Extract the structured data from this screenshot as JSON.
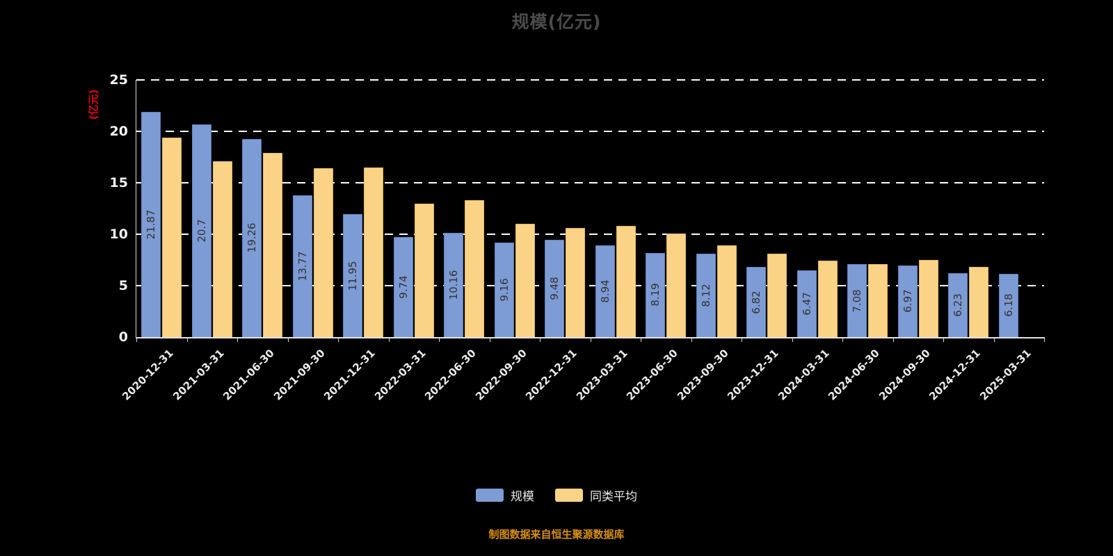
{
  "title": "规模(亿元)",
  "y_axis_unit": "(亿元)",
  "footer": "制图数据来自恒生聚源数据库",
  "colors": {
    "background": "#000000",
    "title_text": "#4b4b4b",
    "axis_text": "#f4f4f4",
    "unit_text": "#e60012",
    "gridline": "#fdfdfd",
    "bar_scale_fill": "#7d9bd4",
    "bar_scale_border": "#5d83c0",
    "bar_average_fill": "#fad387",
    "bar_average_border": "#e3b863",
    "bar_label_text": "#333333",
    "footer_text": "#d78f10"
  },
  "chart_data": {
    "type": "bar",
    "title": "规模(亿元)",
    "ylabel": "(亿元)",
    "ylim": [
      0,
      25
    ],
    "yticks": [
      0,
      5,
      10,
      15,
      20,
      25
    ],
    "grid": "horizontal-dashed",
    "legend_position": "bottom",
    "categories": [
      "2020-12-31",
      "2021-03-31",
      "2021-06-30",
      "2021-09-30",
      "2021-12-31",
      "2022-03-31",
      "2022-06-30",
      "2022-09-30",
      "2022-12-31",
      "2023-03-31",
      "2023-06-30",
      "2023-09-30",
      "2023-12-31",
      "2024-03-31",
      "2024-06-30",
      "2024-09-30",
      "2024-12-31",
      "2025-03-31"
    ],
    "series": [
      {
        "name": "规模",
        "color": "#7d9bd4",
        "border": "#5d83c0",
        "values": [
          21.87,
          20.7,
          19.26,
          13.77,
          11.95,
          9.74,
          10.16,
          9.16,
          9.48,
          8.94,
          8.19,
          8.12,
          6.82,
          6.47,
          7.08,
          6.97,
          6.23,
          6.18
        ],
        "labels": [
          "21.87",
          "20.7",
          "19.26",
          "13.77",
          "11.95",
          "9.74",
          "10.16",
          "9.16",
          "9.48",
          "8.94",
          "8.19",
          "8.12",
          "6.82",
          "6.47",
          "7.08",
          "6.97",
          "6.23",
          "6.18"
        ]
      },
      {
        "name": "同类平均",
        "color": "#fad387",
        "border": "#e3b863",
        "values": [
          19.4,
          17.1,
          17.9,
          16.4,
          16.5,
          13.0,
          13.3,
          11.0,
          10.6,
          10.8,
          10.1,
          8.9,
          8.1,
          7.4,
          7.1,
          7.5,
          6.8,
          null
        ],
        "labels": []
      }
    ]
  }
}
